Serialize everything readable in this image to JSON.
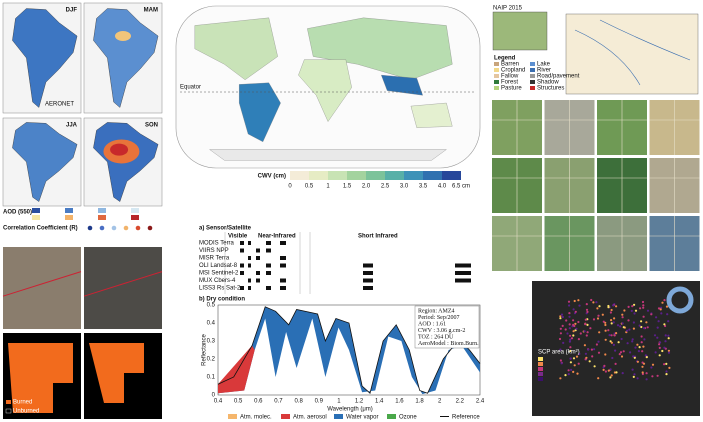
{
  "south_america": {
    "seasons": [
      "DJF",
      "MAM",
      "JJA",
      "SON"
    ],
    "station_label": "AERONET",
    "aod_label": "AOD (550)",
    "corr_label": "Correlation Coefficient (R)"
  },
  "burn": {
    "legend": [
      "Burned",
      "Unburned"
    ]
  },
  "world": {
    "equator": "Equator",
    "colorbar_title": "CWV (cm)",
    "colorbar_ticks": [
      "0",
      "0.5",
      "1",
      "1.5",
      "2.0",
      "2.5",
      "3.0",
      "3.5",
      "4.0",
      "6.5 cm"
    ]
  },
  "sensors": {
    "title": "a) Sensor/Satellite",
    "bands": [
      "Visible",
      "Near-Infrared",
      "Short Infrared"
    ],
    "names": [
      "MODIS Terra",
      "VIIRS NPP",
      "MISR Terra",
      "OLI Landsat-8",
      "MSI Sentinel-2",
      "MUX Cbers-4",
      "LISS3 Rs Sat-2"
    ]
  },
  "dry": {
    "title": "b) Dry condition",
    "y_label": "Reflectance",
    "x_label": "Wavelength (μm)",
    "xticks": [
      "0.4",
      "0.5",
      "0.6",
      "0.7",
      "0.8",
      "0.9",
      "1",
      "1.2",
      "1.4",
      "1.6",
      "1.8",
      "2",
      "2.2",
      "2.4"
    ],
    "yticks": [
      "0",
      "0.1",
      "0.2",
      "0.3",
      "0.4",
      "0.5"
    ],
    "info": [
      "Region: AMZ4",
      "Period: Sep/2007",
      "AOD : 1.61",
      "CWV : 3.06 g.cm-2",
      "TOZ : 264 DU",
      "AeroModel : Biom.Burn."
    ],
    "legend": [
      "Atm. molec.",
      "Atm. aerosol",
      "Water vapor",
      "Ozone",
      "Reference"
    ]
  },
  "iowa": {
    "naip": "NAIP 2015",
    "legend_title": "Legend",
    "classes": [
      "Barren",
      "Cropland",
      "Fallow",
      "Forest",
      "Pasture",
      "Lake",
      "River",
      "Road/pavement",
      "Shadow",
      "Structures"
    ]
  },
  "scp": {
    "label": "SCP area (km²)"
  }
}
